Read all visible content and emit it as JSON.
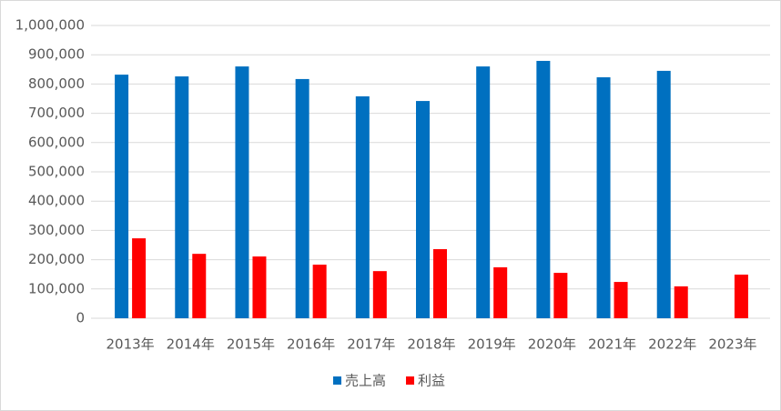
{
  "chart_data": {
    "type": "bar",
    "categories": [
      "2013年",
      "2014年",
      "2015年",
      "2016年",
      "2017年",
      "2018年",
      "2019年",
      "2020年",
      "2021年",
      "2022年",
      "2023年"
    ],
    "series": [
      {
        "name": "売上高",
        "color": "#0070c0",
        "values": [
          832000,
          826000,
          860000,
          817000,
          758000,
          742000,
          860000,
          879000,
          823000,
          845000,
          null
        ]
      },
      {
        "name": "利益",
        "color": "#ff0000",
        "values": [
          273000,
          220000,
          211000,
          183000,
          161000,
          236000,
          174000,
          155000,
          124000,
          109000,
          149000
        ]
      }
    ],
    "ylim": [
      0,
      1000000
    ],
    "yticks": [
      0,
      {
        "value": 100000,
        "label": "100,000"
      },
      {
        "value": 200000,
        "label": "200,000"
      },
      {
        "value": 300000,
        "label": "300,000"
      },
      {
        "value": 400000,
        "label": "400,000"
      },
      {
        "value": 500000,
        "label": "500,000"
      },
      {
        "value": 600000,
        "label": "600,000"
      },
      {
        "value": 700000,
        "label": "700,000"
      },
      {
        "value": 800000,
        "label": "800,000"
      },
      {
        "value": 900000,
        "label": "900,000"
      },
      {
        "value": 1000000,
        "label": "1,000,000"
      }
    ],
    "grid": true,
    "legend": "bottom"
  }
}
